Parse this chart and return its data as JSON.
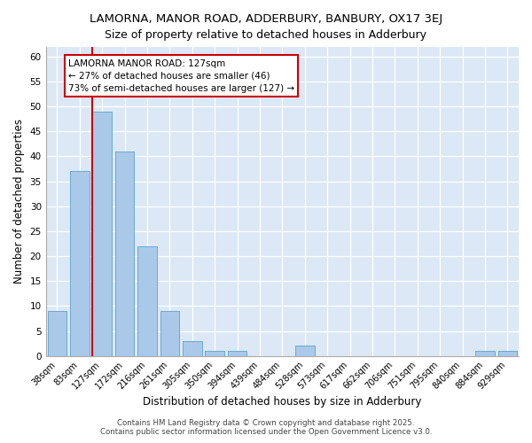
{
  "title": "LAMORNA, MANOR ROAD, ADDERBURY, BANBURY, OX17 3EJ",
  "subtitle": "Size of property relative to detached houses in Adderbury",
  "xlabel": "Distribution of detached houses by size in Adderbury",
  "ylabel": "Number of detached properties",
  "categories": [
    "38sqm",
    "83sqm",
    "127sqm",
    "172sqm",
    "216sqm",
    "261sqm",
    "305sqm",
    "350sqm",
    "394sqm",
    "439sqm",
    "484sqm",
    "528sqm",
    "573sqm",
    "617sqm",
    "662sqm",
    "706sqm",
    "751sqm",
    "795sqm",
    "840sqm",
    "884sqm",
    "929sqm"
  ],
  "values": [
    9,
    37,
    49,
    41,
    22,
    9,
    3,
    1,
    1,
    0,
    0,
    2,
    0,
    0,
    0,
    0,
    0,
    0,
    0,
    1,
    1
  ],
  "bar_color": "#aac8e8",
  "bar_edge_color": "#6aaad4",
  "highlight_index": 2,
  "highlight_color": "#cc0000",
  "ylim": [
    0,
    62
  ],
  "yticks": [
    0,
    5,
    10,
    15,
    20,
    25,
    30,
    35,
    40,
    45,
    50,
    55,
    60
  ],
  "annotation_line1": "LAMORNA MANOR ROAD: 127sqm",
  "annotation_line2": "← 27% of detached houses are smaller (46)",
  "annotation_line3": "73% of semi-detached houses are larger (127) →",
  "bg_color": "#dce8f5",
  "fig_bg_color": "#ffffff",
  "footer": "Contains HM Land Registry data © Crown copyright and database right 2025.\nContains public sector information licensed under the Open Government Licence v3.0.",
  "grid_color": "#ffffff",
  "title_fontsize": 9.5,
  "tick_fontsize": 7,
  "label_fontsize": 8.5,
  "annotation_fontsize": 7.5
}
